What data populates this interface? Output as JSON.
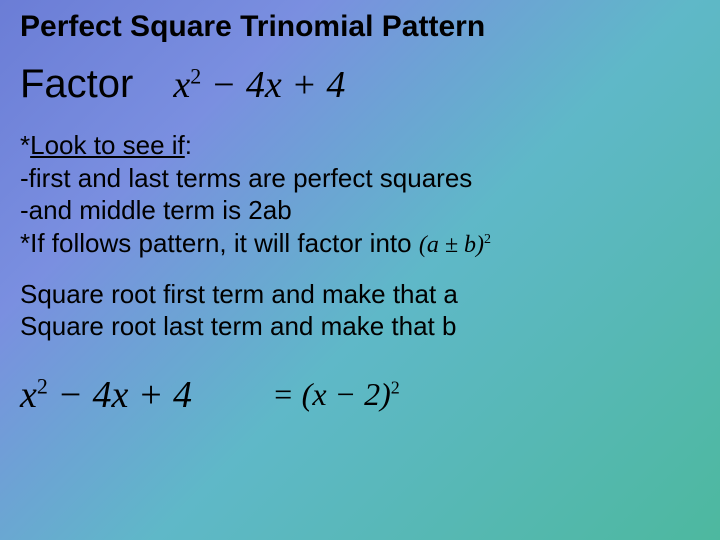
{
  "title": "Perfect Square Trinomial Pattern",
  "factor_label": "Factor",
  "main_expression": {
    "var1": "x",
    "exp1": "2",
    "op1": " − 4",
    "var2": "x",
    "op2": " + 4"
  },
  "lines": {
    "l1_prefix": "*",
    "l1_underlined": "Look to see if",
    "l1_suffix": ":",
    "l2": "-first and last terms are perfect squares",
    "l3": "-and middle term is 2ab",
    "l4": "*If follows pattern, it will factor into ",
    "formula_open": "(",
    "formula_a": "a",
    "formula_pm": " ± ",
    "formula_b": "b",
    "formula_close": ")",
    "formula_exp": "2",
    "l5": "Square root first term and make that a",
    "l6": "Square root last term and make that b"
  },
  "bottom_expression": {
    "var1": "x",
    "exp1": "2",
    "op1": " − 4",
    "var2": "x",
    "op2": " + 4"
  },
  "result": {
    "eq": "= (",
    "var": "x",
    "mid": " − 2)",
    "exp": "2"
  }
}
